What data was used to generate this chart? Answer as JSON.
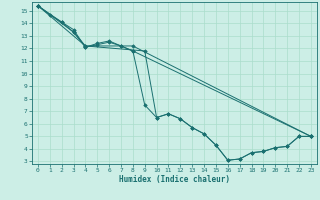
{
  "xlabel": "Humidex (Indice chaleur)",
  "bg_color": "#cceee6",
  "line_color": "#1a7070",
  "grid_color": "#aaddcc",
  "xlim": [
    -0.5,
    23.5
  ],
  "ylim": [
    2.8,
    15.7
  ],
  "xticks": [
    0,
    1,
    2,
    3,
    4,
    5,
    6,
    7,
    8,
    9,
    10,
    11,
    12,
    13,
    14,
    15,
    16,
    17,
    18,
    19,
    20,
    21,
    22,
    23
  ],
  "yticks": [
    3,
    4,
    5,
    6,
    7,
    8,
    9,
    10,
    11,
    12,
    13,
    14,
    15
  ],
  "series1": [
    [
      0,
      15.4
    ],
    [
      1,
      14.7
    ],
    [
      2,
      14.1
    ],
    [
      3,
      13.5
    ],
    [
      4,
      12.1
    ],
    [
      5,
      12.3
    ],
    [
      6,
      12.5
    ],
    [
      7,
      12.2
    ],
    [
      8,
      11.8
    ],
    [
      9,
      7.5
    ],
    [
      10,
      6.5
    ],
    [
      11,
      6.8
    ],
    [
      12,
      6.4
    ],
    [
      13,
      5.7
    ],
    [
      14,
      5.2
    ],
    [
      15,
      4.3
    ],
    [
      16,
      3.1
    ],
    [
      17,
      3.2
    ],
    [
      18,
      3.7
    ],
    [
      19,
      3.8
    ],
    [
      20,
      4.1
    ],
    [
      21,
      4.2
    ],
    [
      22,
      5.0
    ],
    [
      23,
      5.0
    ]
  ],
  "series2": [
    [
      0,
      15.4
    ],
    [
      2,
      14.1
    ],
    [
      3,
      13.3
    ],
    [
      4,
      12.1
    ],
    [
      5,
      12.4
    ],
    [
      6,
      12.6
    ],
    [
      7,
      12.2
    ],
    [
      8,
      11.8
    ],
    [
      23,
      5.0
    ]
  ],
  "series3": [
    [
      0,
      15.4
    ],
    [
      3,
      13.3
    ],
    [
      4,
      12.2
    ],
    [
      8,
      12.2
    ],
    [
      23,
      5.0
    ]
  ],
  "series4": [
    [
      0,
      15.4
    ],
    [
      4,
      12.2
    ],
    [
      9,
      11.8
    ],
    [
      10,
      6.5
    ],
    [
      11,
      6.8
    ],
    [
      12,
      6.4
    ],
    [
      13,
      5.7
    ],
    [
      14,
      5.2
    ],
    [
      15,
      4.3
    ],
    [
      16,
      3.1
    ],
    [
      17,
      3.2
    ],
    [
      18,
      3.7
    ],
    [
      19,
      3.8
    ],
    [
      20,
      4.1
    ],
    [
      21,
      4.2
    ],
    [
      22,
      5.0
    ],
    [
      23,
      5.0
    ]
  ]
}
